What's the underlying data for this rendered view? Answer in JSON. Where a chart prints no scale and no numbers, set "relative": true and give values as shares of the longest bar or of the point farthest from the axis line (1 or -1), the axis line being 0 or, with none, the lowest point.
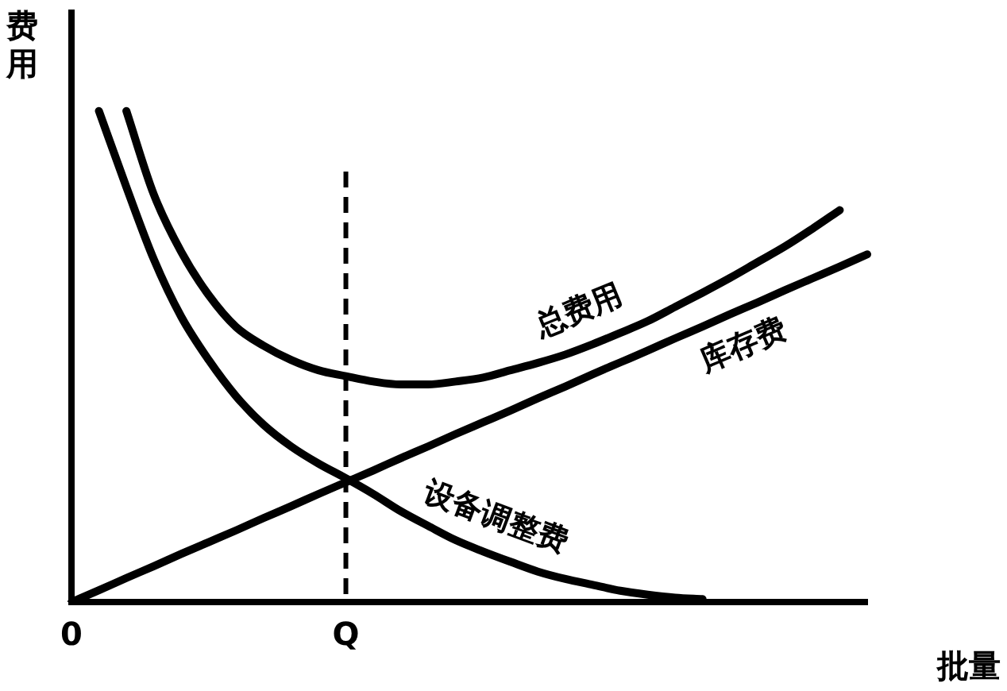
{
  "chart_data": {
    "type": "line",
    "relative": true,
    "xlabel": "批量",
    "ylabel": "费用",
    "categories": [
      "0",
      null,
      null,
      null,
      null,
      null,
      null,
      null,
      null,
      null,
      "Q",
      null,
      null,
      null,
      null,
      null,
      null,
      null,
      null,
      null,
      null,
      null,
      null,
      null,
      null,
      null,
      null,
      null,
      null,
      null
    ],
    "series": [
      {
        "name": "总费用",
        "color": "#000000",
        "values": [
          null,
          null,
          1,
          0.83,
          0.713,
          0.625,
          0.56,
          0.522,
          0.493,
          0.472,
          0.46,
          0.449,
          0.443,
          0.443,
          0.449,
          0.457,
          0.472,
          0.487,
          0.504,
          0.525,
          0.548,
          0.572,
          0.601,
          0.63,
          0.66,
          0.692,
          0.724,
          0.76,
          0.798,
          null
        ]
      },
      {
        "name": "库存费",
        "color": "#000000",
        "values": [
          0,
          0.024,
          0.049,
          0.073,
          0.098,
          0.122,
          0.146,
          0.171,
          0.195,
          0.22,
          0.244,
          0.268,
          0.293,
          0.317,
          0.342,
          0.366,
          0.39,
          0.415,
          0.439,
          0.464,
          0.488,
          0.512,
          0.537,
          0.561,
          0.586,
          0.61,
          0.635,
          0.659,
          0.683,
          0.708
        ]
      },
      {
        "name": "设备调整费",
        "color": "#000000",
        "values": [
          null,
          1,
          0.845,
          0.698,
          0.581,
          0.493,
          0.419,
          0.361,
          0.317,
          0.282,
          0.252,
          0.22,
          0.185,
          0.155,
          0.126,
          0.103,
          0.082,
          0.062,
          0.047,
          0.035,
          0.023,
          0.015,
          0.009,
          0.006,
          null,
          null,
          null,
          null,
          null,
          null
        ]
      }
    ],
    "ref_lines": [
      {
        "axis": "x",
        "value": "Q",
        "line_style": "dashed",
        "color": "#000000"
      }
    ],
    "legend": false,
    "grid": false,
    "marker": "none",
    "line_style": "solid"
  }
}
